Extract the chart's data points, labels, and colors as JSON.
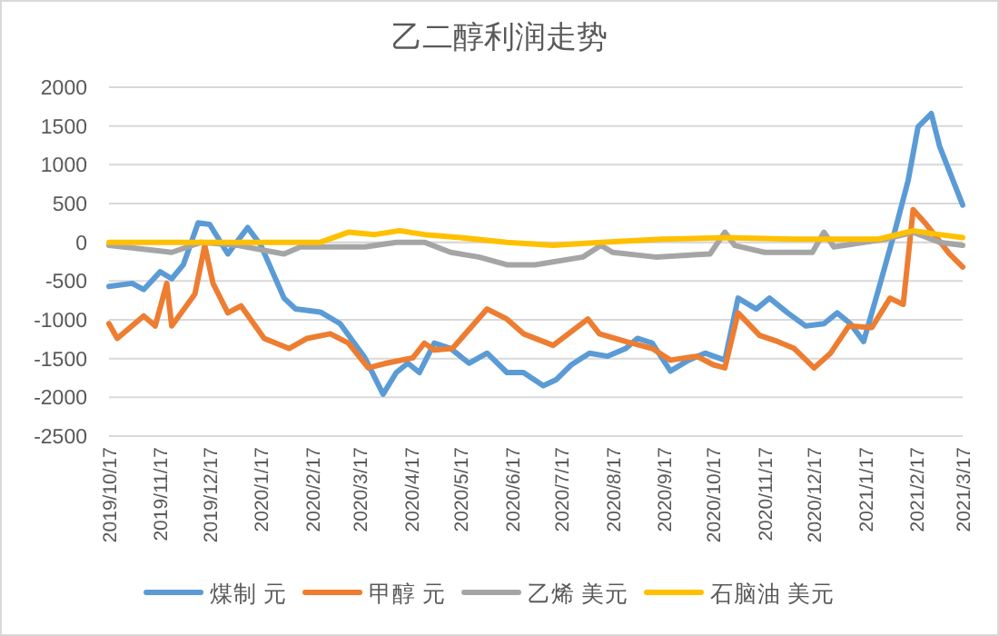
{
  "chart_data": {
    "type": "line",
    "title": "乙二醇利润走势",
    "xlim": [
      "2019-10-17",
      "2021-03-17"
    ],
    "xticks": [
      {
        "value": "2019-10-17",
        "label": "2019/10/17"
      },
      {
        "value": "2019-11-17",
        "label": "2019/11/17"
      },
      {
        "value": "2019-12-17",
        "label": "2019/12/17"
      },
      {
        "value": "2020-01-17",
        "label": "2020/1/17"
      },
      {
        "value": "2020-02-17",
        "label": "2020/2/17"
      },
      {
        "value": "2020-03-17",
        "label": "2020/3/17"
      },
      {
        "value": "2020-04-17",
        "label": "2020/4/17"
      },
      {
        "value": "2020-05-17",
        "label": "2020/5/17"
      },
      {
        "value": "2020-06-17",
        "label": "2020/6/17"
      },
      {
        "value": "2020-07-17",
        "label": "2020/7/17"
      },
      {
        "value": "2020-08-17",
        "label": "2020/8/17"
      },
      {
        "value": "2020-09-17",
        "label": "2020/9/17"
      },
      {
        "value": "2020-10-17",
        "label": "2020/10/17"
      },
      {
        "value": "2020-11-17",
        "label": "2020/11/17"
      },
      {
        "value": "2020-12-17",
        "label": "2020/12/17"
      },
      {
        "value": "2021-01-17",
        "label": "2021/1/17"
      },
      {
        "value": "2021-02-17",
        "label": "2021/2/17"
      },
      {
        "value": "2021-03-17",
        "label": "2021/3/17"
      }
    ],
    "ylim": [
      -2500,
      2000
    ],
    "yticks": [
      -2500,
      -2000,
      -1500,
      -1000,
      -500,
      0,
      500,
      1000,
      1500,
      2000
    ],
    "grid": "y",
    "legend": "bottom",
    "marker": "none",
    "line_style": "solid",
    "series": [
      {
        "name": "煤制  元",
        "color": "#5b9bd5",
        "x": [
          "2019-10-17",
          "2019-10-31",
          "2019-11-07",
          "2019-11-17",
          "2019-11-24",
          "2019-12-01",
          "2019-12-10",
          "2019-12-17",
          "2019-12-28",
          "2020-01-09",
          "2020-01-17",
          "2020-01-31",
          "2020-02-07",
          "2020-02-22",
          "2020-03-05",
          "2020-03-20",
          "2020-03-31",
          "2020-04-08",
          "2020-04-15",
          "2020-04-22",
          "2020-05-01",
          "2020-05-11",
          "2020-05-22",
          "2020-06-02",
          "2020-06-14",
          "2020-06-24",
          "2020-07-06",
          "2020-07-14",
          "2020-07-23",
          "2020-08-03",
          "2020-08-14",
          "2020-08-25",
          "2020-09-01",
          "2020-09-10",
          "2020-09-21",
          "2020-10-02",
          "2020-10-12",
          "2020-10-24",
          "2020-11-01",
          "2020-11-12",
          "2020-11-20",
          "2020-12-01",
          "2020-12-12",
          "2020-12-23",
          "2020-12-31",
          "2021-01-08",
          "2021-01-16",
          "2021-01-25",
          "2021-02-04",
          "2021-02-12",
          "2021-02-18",
          "2021-02-26",
          "2021-03-03",
          "2021-03-17"
        ],
        "values": [
          -570,
          -530,
          -610,
          -380,
          -470,
          -290,
          250,
          230,
          -150,
          190,
          -40,
          -720,
          -860,
          -900,
          -1050,
          -1490,
          -1960,
          -1680,
          -1560,
          -1680,
          -1300,
          -1370,
          -1560,
          -1430,
          -1680,
          -1680,
          -1850,
          -1770,
          -1580,
          -1430,
          -1470,
          -1370,
          -1240,
          -1300,
          -1660,
          -1520,
          -1430,
          -1520,
          -720,
          -860,
          -720,
          -910,
          -1080,
          -1050,
          -910,
          -1050,
          -1280,
          -610,
          150,
          800,
          1490,
          1660,
          1240,
          480
        ]
      },
      {
        "name": "甲醇 元",
        "color": "#ed7d31",
        "x": [
          "2019-10-17",
          "2019-10-22",
          "2019-11-07",
          "2019-11-14",
          "2019-11-21",
          "2019-11-24",
          "2019-12-08",
          "2019-12-14",
          "2019-12-19",
          "2019-12-28",
          "2020-01-05",
          "2020-01-19",
          "2020-02-03",
          "2020-02-14",
          "2020-02-28",
          "2020-03-10",
          "2020-03-22",
          "2020-04-02",
          "2020-04-18",
          "2020-04-25",
          "2020-05-01",
          "2020-05-12",
          "2020-06-02",
          "2020-06-14",
          "2020-06-24",
          "2020-07-12",
          "2020-08-02",
          "2020-08-09",
          "2020-08-25",
          "2020-09-10",
          "2020-09-21",
          "2020-10-07",
          "2020-10-17",
          "2020-10-24",
          "2020-11-01",
          "2020-11-14",
          "2020-11-25",
          "2020-12-05",
          "2020-12-17",
          "2020-12-27",
          "2021-01-07",
          "2021-01-21",
          "2021-02-01",
          "2021-02-09",
          "2021-02-15",
          "2021-02-23",
          "2021-03-09",
          "2021-03-17"
        ],
        "values": [
          -1050,
          -1240,
          -950,
          -1080,
          -530,
          -1080,
          -670,
          -40,
          -530,
          -910,
          -820,
          -1240,
          -1370,
          -1240,
          -1180,
          -1300,
          -1620,
          -1560,
          -1490,
          -1300,
          -1390,
          -1370,
          -860,
          -990,
          -1180,
          -1330,
          -990,
          -1180,
          -1280,
          -1370,
          -1520,
          -1470,
          -1580,
          -1620,
          -910,
          -1200,
          -1280,
          -1370,
          -1620,
          -1430,
          -1080,
          -1100,
          -720,
          -800,
          420,
          230,
          -150,
          -320
        ]
      },
      {
        "name": "乙烯 美元",
        "color": "#a5a5a5",
        "x": [
          "2019-10-17",
          "2019-11-12",
          "2019-11-24",
          "2019-12-12",
          "2020-01-03",
          "2020-01-31",
          "2020-02-10",
          "2020-03-20",
          "2020-04-08",
          "2020-04-25",
          "2020-05-11",
          "2020-05-28",
          "2020-06-14",
          "2020-07-01",
          "2020-07-30",
          "2020-08-10",
          "2020-08-17",
          "2020-09-12",
          "2020-10-15",
          "2020-10-24",
          "2020-10-30",
          "2020-11-17",
          "2020-12-16",
          "2020-12-23",
          "2020-12-29",
          "2021-01-29",
          "2021-02-15",
          "2021-03-03",
          "2021-03-17"
        ],
        "values": [
          -40,
          -100,
          -130,
          0,
          -40,
          -150,
          -60,
          -60,
          0,
          0,
          -130,
          -190,
          -290,
          -290,
          -190,
          -40,
          -130,
          -190,
          -150,
          130,
          -40,
          -130,
          -130,
          130,
          -60,
          40,
          130,
          0,
          -40
        ]
      },
      {
        "name": "石脑油 美元",
        "color": "#ffc000",
        "x": [
          "2019-10-17",
          "2020-01-03",
          "2020-02-22",
          "2020-03-10",
          "2020-03-26",
          "2020-04-10",
          "2020-04-25",
          "2020-05-17",
          "2020-06-14",
          "2020-07-12",
          "2020-08-10",
          "2020-09-16",
          "2020-10-24",
          "2020-12-05",
          "2021-01-25",
          "2021-02-15",
          "2021-03-03",
          "2021-03-17"
        ],
        "values": [
          0,
          0,
          0,
          130,
          100,
          150,
          100,
          60,
          0,
          -40,
          0,
          40,
          60,
          40,
          40,
          150,
          100,
          60
        ]
      }
    ]
  }
}
